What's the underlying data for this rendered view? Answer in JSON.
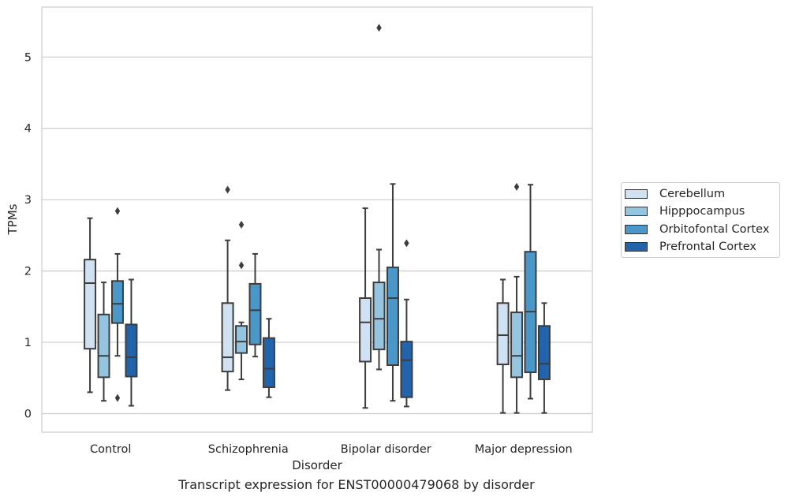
{
  "chart_data": {
    "type": "boxplot",
    "caption": "Transcript expression for ENST00000479068 by disorder",
    "xlabel": "Disorder",
    "ylabel": "TPMs",
    "ylim": [
      -0.26,
      5.7
    ],
    "yticks": [
      0,
      1,
      2,
      3,
      4,
      5
    ],
    "grid": "horizontal",
    "legend_position": "right",
    "categories": [
      "Control",
      "Schizophrenia",
      "Bipolar disorder",
      "Major depression"
    ],
    "series": [
      {
        "name": "Cerebellum",
        "color": "#d0e1f2",
        "boxes": [
          {
            "whislo": 0.3,
            "q1": 0.91,
            "med": 1.83,
            "q3": 2.16,
            "whishi": 2.74,
            "fliers": []
          },
          {
            "whislo": 0.33,
            "q1": 0.59,
            "med": 0.79,
            "q3": 1.55,
            "whishi": 2.43,
            "fliers": [
              3.14
            ]
          },
          {
            "whislo": 0.08,
            "q1": 0.73,
            "med": 1.28,
            "q3": 1.62,
            "whishi": 2.88,
            "fliers": []
          },
          {
            "whislo": 0.01,
            "q1": 0.69,
            "med": 1.1,
            "q3": 1.55,
            "whishi": 1.88,
            "fliers": []
          }
        ]
      },
      {
        "name": "Hipppocampus",
        "color": "#94c4df",
        "boxes": [
          {
            "whislo": 0.18,
            "q1": 0.51,
            "med": 0.81,
            "q3": 1.39,
            "whishi": 1.84,
            "fliers": []
          },
          {
            "whislo": 0.48,
            "q1": 0.85,
            "med": 1.01,
            "q3": 1.23,
            "whishi": 1.28,
            "fliers": [
              2.65,
              2.08
            ]
          },
          {
            "whislo": 0.62,
            "q1": 0.9,
            "med": 1.33,
            "q3": 1.84,
            "whishi": 2.3,
            "fliers": [
              5.41
            ]
          },
          {
            "whislo": 0.01,
            "q1": 0.51,
            "med": 0.81,
            "q3": 1.42,
            "whishi": 1.92,
            "fliers": [
              3.18
            ]
          }
        ]
      },
      {
        "name": "Orbitofontal Cortex",
        "color": "#4a98c9",
        "boxes": [
          {
            "whislo": 0.81,
            "q1": 1.27,
            "med": 1.54,
            "q3": 1.86,
            "whishi": 2.24,
            "fliers": [
              2.84,
              0.22
            ]
          },
          {
            "whislo": 0.8,
            "q1": 0.97,
            "med": 1.45,
            "q3": 1.82,
            "whishi": 2.24,
            "fliers": []
          },
          {
            "whislo": 0.18,
            "q1": 0.68,
            "med": 1.62,
            "q3": 2.05,
            "whishi": 3.22,
            "fliers": []
          },
          {
            "whislo": 0.21,
            "q1": 0.58,
            "med": 1.43,
            "q3": 2.27,
            "whishi": 3.21,
            "fliers": []
          }
        ]
      },
      {
        "name": "Prefrontal Cortex",
        "color": "#2164ab",
        "boxes": [
          {
            "whislo": 0.11,
            "q1": 0.52,
            "med": 0.79,
            "q3": 1.25,
            "whishi": 1.88,
            "fliers": []
          },
          {
            "whislo": 0.23,
            "q1": 0.37,
            "med": 0.63,
            "q3": 1.06,
            "whishi": 1.33,
            "fliers": []
          },
          {
            "whislo": 0.1,
            "q1": 0.23,
            "med": 0.75,
            "q3": 1.01,
            "whishi": 1.6,
            "fliers": [
              2.39
            ]
          },
          {
            "whislo": 0.01,
            "q1": 0.48,
            "med": 0.7,
            "q3": 1.23,
            "whishi": 1.55,
            "fliers": []
          }
        ]
      }
    ]
  }
}
